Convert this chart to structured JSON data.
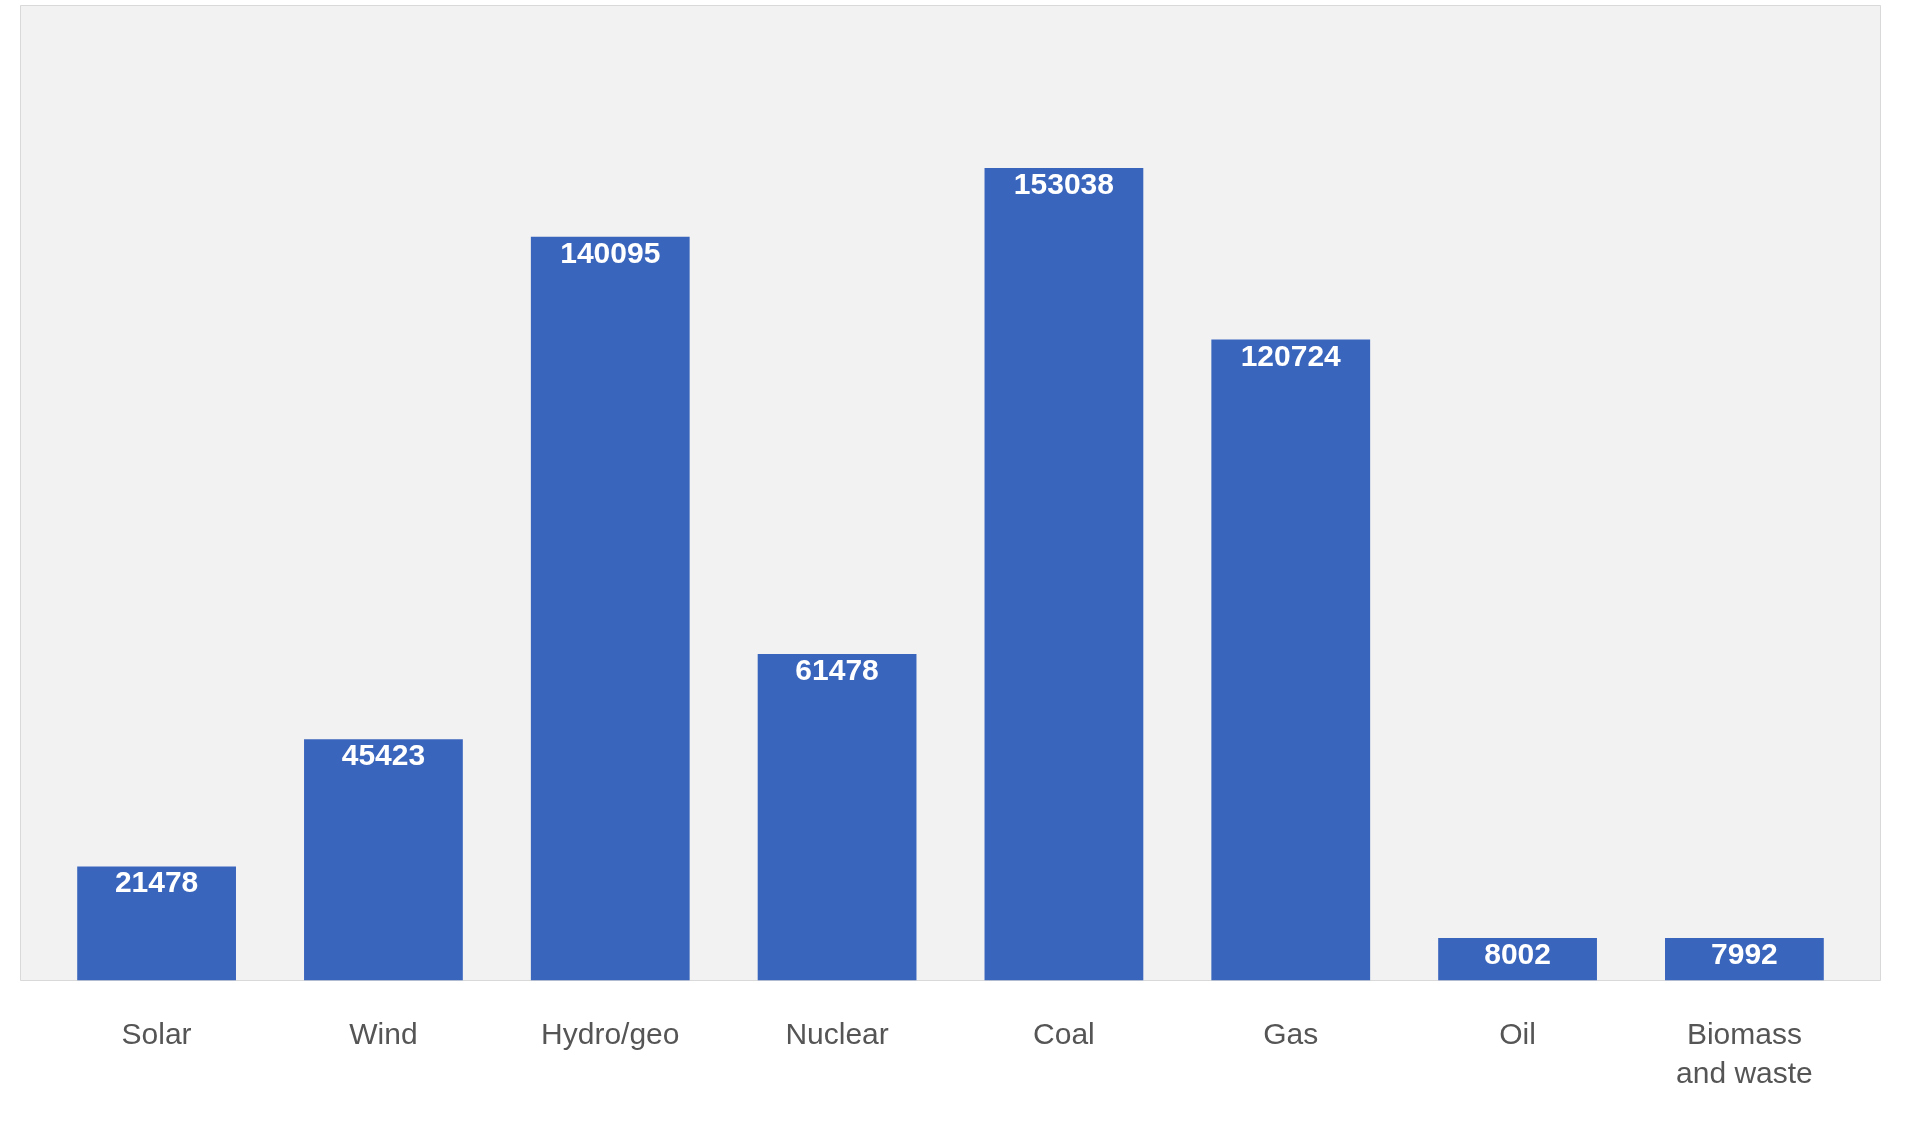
{
  "chart_data": {
    "type": "bar",
    "categories": [
      "Solar",
      "Wind",
      "Hydro/geo",
      "Nuclear",
      "Coal",
      "Gas",
      "Oil",
      "Biomass and waste"
    ],
    "values": [
      21478,
      45423,
      140095,
      61478,
      153038,
      120724,
      8002,
      7992
    ],
    "color": "#3a65bd",
    "data_labels": true
  }
}
